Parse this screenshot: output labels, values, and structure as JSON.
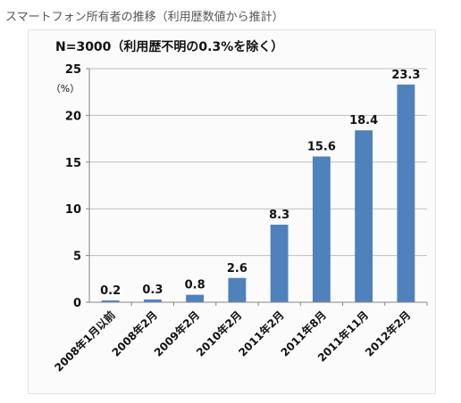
{
  "page_title": "スマートフォン所有者の推移（利用歴数値から推計）",
  "chart_data": {
    "type": "bar",
    "title": "",
    "subtitle": "N=3000（利用歴不明の0.3%を除く）",
    "ylabel": "（%）",
    "xlabel": "",
    "categories": [
      "2008年1月以前",
      "2008年2月",
      "2009年2月",
      "2010年2月",
      "2011年2月",
      "2011年8月",
      "2011年11月",
      "2012年2月"
    ],
    "values": [
      0.2,
      0.3,
      0.8,
      2.6,
      8.3,
      15.6,
      18.4,
      23.3
    ],
    "value_labels": [
      "0.2",
      "0.3",
      "0.8",
      "2.6",
      "8.3",
      "15.6",
      "18.4",
      "23.3"
    ],
    "ylim": [
      0,
      25
    ],
    "yticks": [
      0,
      5,
      10,
      15,
      20,
      25
    ],
    "grid": true,
    "legend": "none",
    "bar_color": "#4f81bd",
    "grid_color": "#bfbfbf",
    "axis_color": "#868686"
  }
}
